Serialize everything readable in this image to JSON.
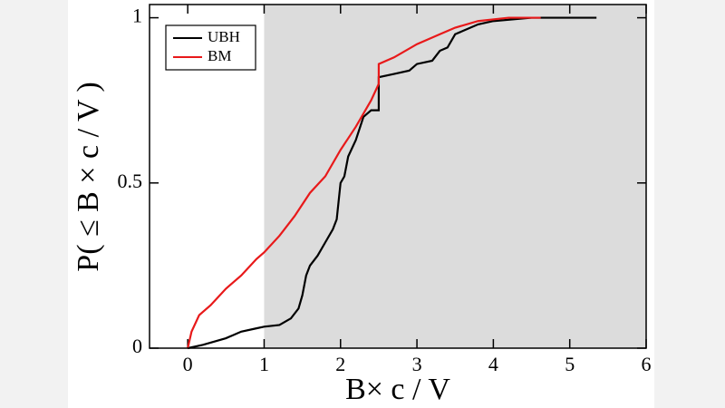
{
  "chart_data": {
    "type": "line",
    "x_label": "B× c / V",
    "y_label": "P( ≤ B × c / V )",
    "xlim": [
      -0.5,
      6
    ],
    "ylim": [
      0,
      1.04
    ],
    "xticks": [
      0,
      1,
      2,
      3,
      4,
      5,
      6
    ],
    "yticks": [
      0,
      0.5,
      1
    ],
    "shade_x": [
      1,
      6
    ],
    "shade_color": "#dcdcdc",
    "legend": "upper left",
    "series": [
      {
        "name": "UBH",
        "color": "#000000",
        "x": [
          0,
          0.2,
          0.5,
          0.7,
          0.9,
          1.0,
          1.2,
          1.35,
          1.45,
          1.5,
          1.55,
          1.6,
          1.7,
          1.8,
          1.9,
          1.95,
          2.0,
          2.05,
          2.1,
          2.2,
          2.3,
          2.4,
          2.5,
          2.5,
          2.7,
          2.9,
          3.0,
          3.2,
          3.3,
          3.4,
          3.5,
          3.6,
          3.8,
          4.0,
          4.5,
          5.35
        ],
        "values": [
          0,
          0.01,
          0.03,
          0.05,
          0.06,
          0.065,
          0.07,
          0.09,
          0.12,
          0.16,
          0.22,
          0.25,
          0.28,
          0.32,
          0.36,
          0.39,
          0.5,
          0.52,
          0.58,
          0.63,
          0.7,
          0.72,
          0.72,
          0.82,
          0.83,
          0.84,
          0.86,
          0.87,
          0.9,
          0.91,
          0.95,
          0.96,
          0.98,
          0.99,
          1.0,
          1.0
        ]
      },
      {
        "name": "BM",
        "color": "#e8191a",
        "x": [
          0,
          0.05,
          0.15,
          0.3,
          0.5,
          0.7,
          0.9,
          1.0,
          1.2,
          1.4,
          1.6,
          1.8,
          2.0,
          2.2,
          2.4,
          2.5,
          2.5,
          2.7,
          3.0,
          3.3,
          3.5,
          3.8,
          4.2,
          4.62
        ],
        "values": [
          0,
          0.05,
          0.1,
          0.13,
          0.18,
          0.22,
          0.27,
          0.29,
          0.34,
          0.4,
          0.47,
          0.52,
          0.6,
          0.67,
          0.75,
          0.8,
          0.86,
          0.88,
          0.92,
          0.95,
          0.97,
          0.99,
          1.0,
          1.0
        ]
      }
    ]
  }
}
